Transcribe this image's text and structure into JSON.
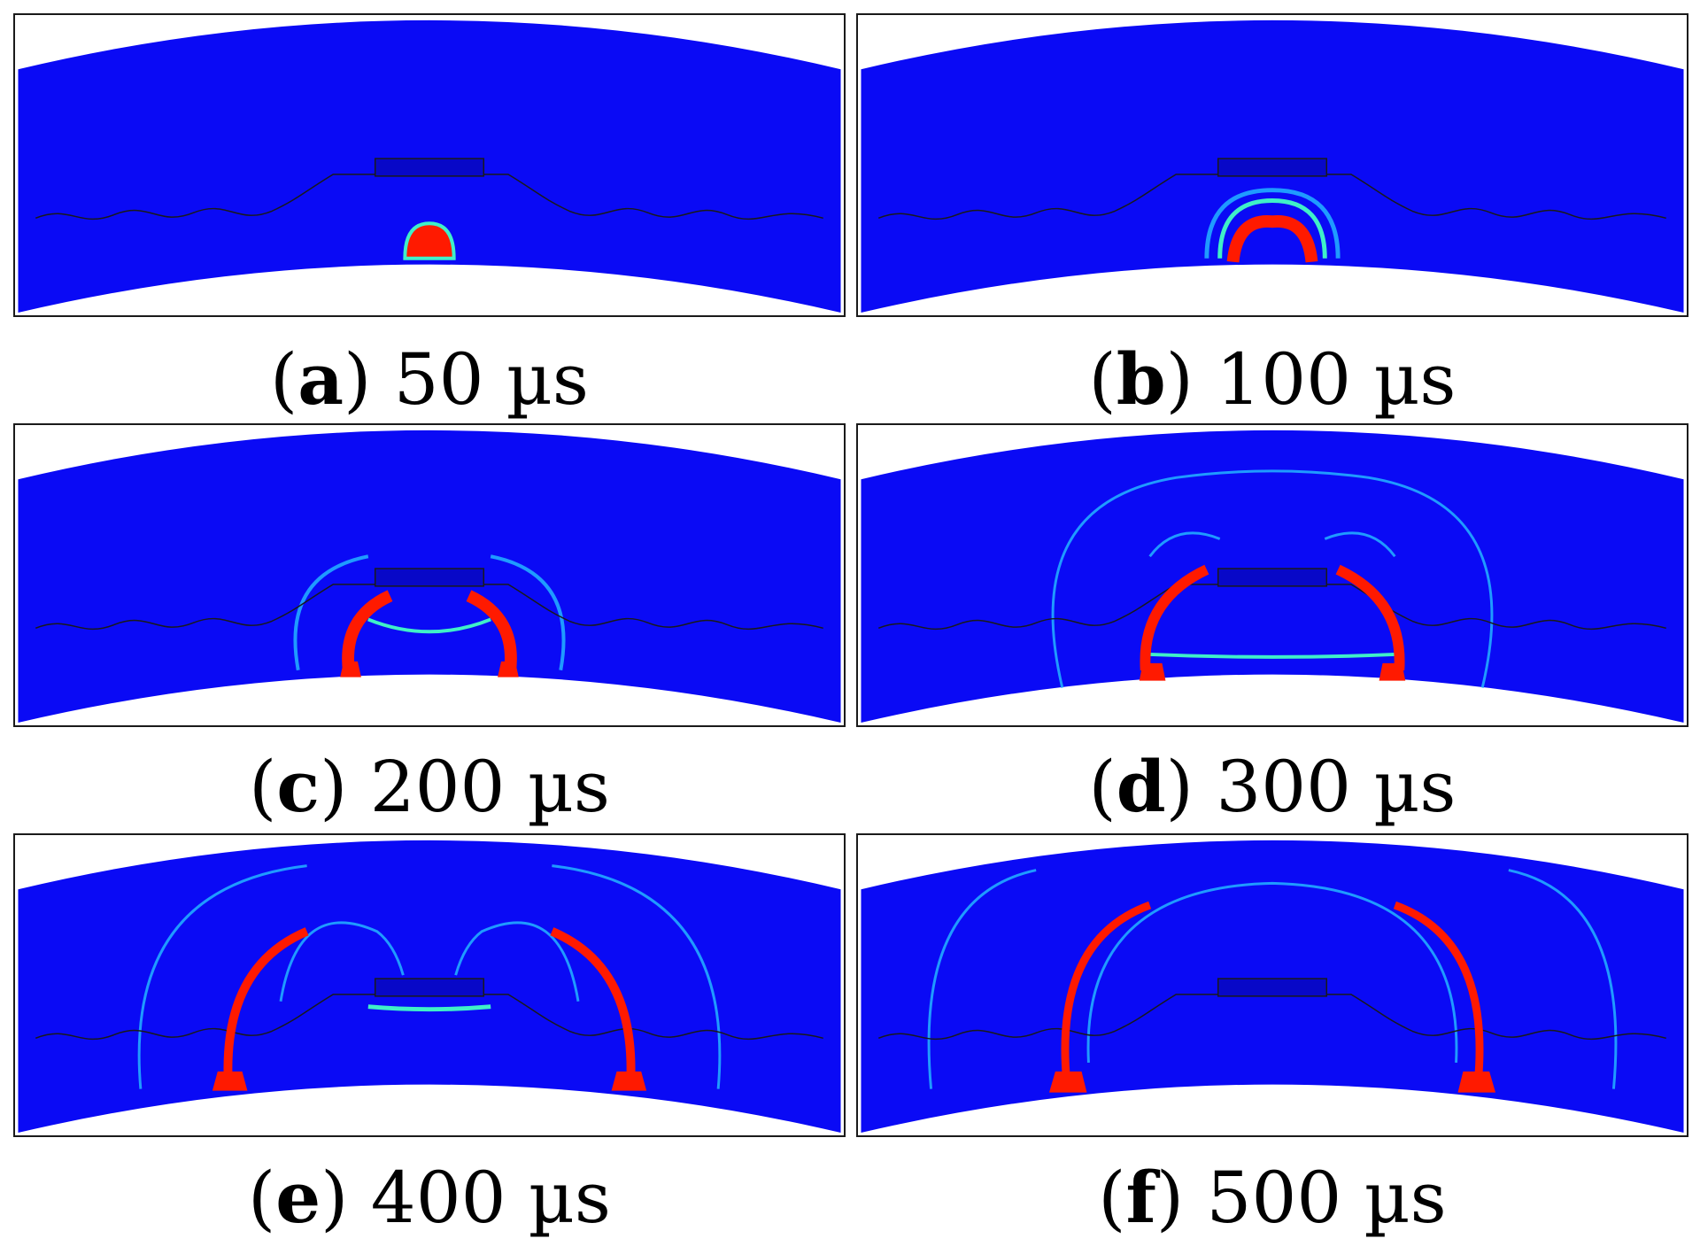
{
  "colors": {
    "field": "#0a0af5",
    "low_contour": "#1f9bff",
    "mid_contour": "#3ff0c8",
    "high": "#ff1a00",
    "outline": "#1a1a1a"
  },
  "panels": [
    {
      "letter": "a",
      "time": "50 µs"
    },
    {
      "letter": "b",
      "time": "100 µs"
    },
    {
      "letter": "c",
      "time": "200 µs"
    },
    {
      "letter": "d",
      "time": "300 µs"
    },
    {
      "letter": "e",
      "time": "400 µs"
    },
    {
      "letter": "f",
      "time": "500 µs"
    }
  ]
}
